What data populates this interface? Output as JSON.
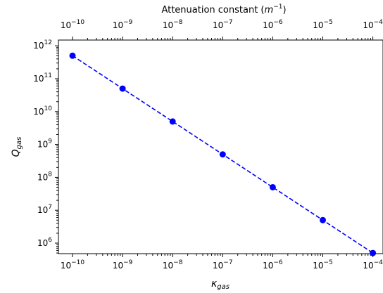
{
  "chart_data": {
    "type": "line",
    "title": "",
    "xlabel": {
      "base": "κ",
      "sub": "gas"
    },
    "ylabel": {
      "base": "Q",
      "sub": "gas"
    },
    "top_xlabel": {
      "text": "Attenuation constant (",
      "base": "m",
      "sup": "−1",
      "close": ")"
    },
    "xscale": "log",
    "yscale": "log",
    "xlim_exp": [
      -10.3,
      -4
    ],
    "ylim_exp": [
      5.4,
      12
    ],
    "x_ticks": [
      {
        "base": "10",
        "exp": "−10"
      },
      {
        "base": "10",
        "exp": "−9"
      },
      {
        "base": "10",
        "exp": "−8"
      },
      {
        "base": "10",
        "exp": "−7"
      },
      {
        "base": "10",
        "exp": "−6"
      },
      {
        "base": "10",
        "exp": "−5"
      },
      {
        "base": "10",
        "exp": "−4"
      }
    ],
    "y_ticks": [
      {
        "base": "10",
        "exp": "6"
      },
      {
        "base": "10",
        "exp": "7"
      },
      {
        "base": "10",
        "exp": "8"
      },
      {
        "base": "10",
        "exp": "9"
      },
      {
        "base": "10",
        "exp": "10"
      },
      {
        "base": "10",
        "exp": "11"
      },
      {
        "base": "10",
        "exp": "12"
      }
    ],
    "series": [
      {
        "color": "#0000ff",
        "line_style": "dashed",
        "marker": "circle",
        "x": [
          1e-10,
          1e-09,
          1e-08,
          1e-07,
          1e-06,
          1e-05,
          0.0001
        ],
        "y": [
          500000000000.0,
          50000000000.0,
          5000000000.0,
          500000000.0,
          50000000.0,
          5000000.0,
          500000.0
        ]
      }
    ],
    "grid": false,
    "legend": "none"
  }
}
